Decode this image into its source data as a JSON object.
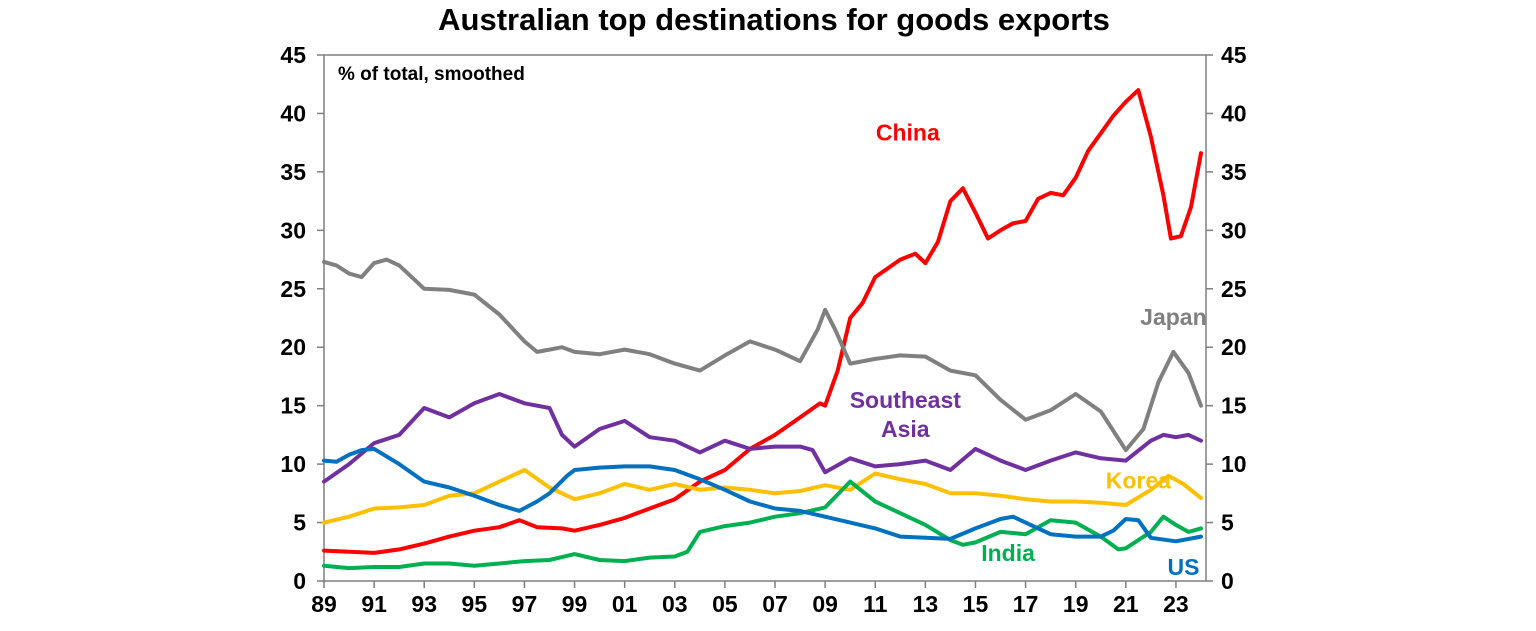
{
  "chart_data": {
    "type": "line",
    "title": "Australian top destinations for goods exports",
    "note": "% of total, smoothed",
    "xlabel": "",
    "ylabel": "",
    "xlim": [
      1989,
      2024.2
    ],
    "ylim": [
      0,
      45
    ],
    "y_ticks": [
      0,
      5,
      10,
      15,
      20,
      25,
      30,
      35,
      40,
      45
    ],
    "x_ticks": [
      {
        "value": 1989,
        "label": "89"
      },
      {
        "value": 1991,
        "label": "91"
      },
      {
        "value": 1993,
        "label": "93"
      },
      {
        "value": 1995,
        "label": "95"
      },
      {
        "value": 1997,
        "label": "97"
      },
      {
        "value": 1999,
        "label": "99"
      },
      {
        "value": 2001,
        "label": "01"
      },
      {
        "value": 2003,
        "label": "03"
      },
      {
        "value": 2005,
        "label": "05"
      },
      {
        "value": 2007,
        "label": "07"
      },
      {
        "value": 2009,
        "label": "09"
      },
      {
        "value": 2011,
        "label": "11"
      },
      {
        "value": 2013,
        "label": "13"
      },
      {
        "value": 2015,
        "label": "15"
      },
      {
        "value": 2017,
        "label": "17"
      },
      {
        "value": 2019,
        "label": "19"
      },
      {
        "value": 2021,
        "label": "21"
      },
      {
        "value": 2023,
        "label": "23"
      }
    ],
    "grid": false,
    "legend": "inline labels",
    "series": [
      {
        "key": "china",
        "name": "China",
        "color": "#ff0000",
        "label_lines": [
          "China"
        ],
        "label_anchor": {
          "x": 2012.3,
          "y": 37.7
        },
        "points": [
          [
            1989.0,
            2.6
          ],
          [
            1990.0,
            2.5
          ],
          [
            1991.0,
            2.4
          ],
          [
            1992.0,
            2.7
          ],
          [
            1993.0,
            3.2
          ],
          [
            1994.0,
            3.8
          ],
          [
            1995.0,
            4.3
          ],
          [
            1996.0,
            4.6
          ],
          [
            1996.8,
            5.2
          ],
          [
            1997.5,
            4.6
          ],
          [
            1998.5,
            4.5
          ],
          [
            1999.0,
            4.3
          ],
          [
            2000.0,
            4.8
          ],
          [
            2001.0,
            5.4
          ],
          [
            2002.0,
            6.2
          ],
          [
            2003.0,
            7.0
          ],
          [
            2004.0,
            8.5
          ],
          [
            2005.0,
            9.5
          ],
          [
            2006.0,
            11.3
          ],
          [
            2007.0,
            12.5
          ],
          [
            2008.0,
            14.0
          ],
          [
            2008.8,
            15.2
          ],
          [
            2009.0,
            15.0
          ],
          [
            2009.5,
            18.0
          ],
          [
            2010.0,
            22.5
          ],
          [
            2010.5,
            23.8
          ],
          [
            2011.0,
            26.0
          ],
          [
            2012.0,
            27.5
          ],
          [
            2012.6,
            28.0
          ],
          [
            2013.0,
            27.2
          ],
          [
            2013.5,
            29.0
          ],
          [
            2014.0,
            32.5
          ],
          [
            2014.5,
            33.6
          ],
          [
            2015.0,
            31.5
          ],
          [
            2015.5,
            29.3
          ],
          [
            2016.0,
            30.0
          ],
          [
            2016.5,
            30.6
          ],
          [
            2017.0,
            30.8
          ],
          [
            2017.5,
            32.7
          ],
          [
            2018.0,
            33.2
          ],
          [
            2018.5,
            33.0
          ],
          [
            2019.0,
            34.5
          ],
          [
            2019.5,
            36.8
          ],
          [
            2020.0,
            38.3
          ],
          [
            2020.5,
            39.8
          ],
          [
            2021.0,
            41.0
          ],
          [
            2021.5,
            42.0
          ],
          [
            2022.0,
            38.0
          ],
          [
            2022.5,
            33.0
          ],
          [
            2022.8,
            29.3
          ],
          [
            2023.2,
            29.5
          ],
          [
            2023.6,
            32.0
          ],
          [
            2024.0,
            36.6
          ]
        ]
      },
      {
        "key": "japan",
        "name": "Japan",
        "color": "#808080",
        "label_lines": [
          "Japan"
        ],
        "label_anchor": {
          "x": 2022.9,
          "y": 21.9
        },
        "points": [
          [
            1989.0,
            27.3
          ],
          [
            1989.5,
            27.0
          ],
          [
            1990.0,
            26.3
          ],
          [
            1990.5,
            26.0
          ],
          [
            1991.0,
            27.2
          ],
          [
            1991.5,
            27.5
          ],
          [
            1992.0,
            27.0
          ],
          [
            1992.5,
            26.0
          ],
          [
            1993.0,
            25.0
          ],
          [
            1994.0,
            24.9
          ],
          [
            1995.0,
            24.5
          ],
          [
            1996.0,
            22.8
          ],
          [
            1997.0,
            20.5
          ],
          [
            1997.5,
            19.6
          ],
          [
            1998.0,
            19.8
          ],
          [
            1998.5,
            20.0
          ],
          [
            1999.0,
            19.6
          ],
          [
            2000.0,
            19.4
          ],
          [
            2001.0,
            19.8
          ],
          [
            2002.0,
            19.4
          ],
          [
            2003.0,
            18.6
          ],
          [
            2004.0,
            18.0
          ],
          [
            2005.0,
            19.3
          ],
          [
            2006.0,
            20.5
          ],
          [
            2007.0,
            19.8
          ],
          [
            2008.0,
            18.8
          ],
          [
            2008.7,
            21.5
          ],
          [
            2009.0,
            23.2
          ],
          [
            2009.4,
            21.5
          ],
          [
            2010.0,
            18.6
          ],
          [
            2011.0,
            19.0
          ],
          [
            2012.0,
            19.3
          ],
          [
            2013.0,
            19.2
          ],
          [
            2014.0,
            18.0
          ],
          [
            2015.0,
            17.6
          ],
          [
            2016.0,
            15.5
          ],
          [
            2017.0,
            13.8
          ],
          [
            2018.0,
            14.6
          ],
          [
            2019.0,
            16.0
          ],
          [
            2020.0,
            14.5
          ],
          [
            2021.0,
            11.2
          ],
          [
            2021.7,
            13.0
          ],
          [
            2022.3,
            17.0
          ],
          [
            2022.9,
            19.6
          ],
          [
            2023.5,
            17.8
          ],
          [
            2024.0,
            15.0
          ]
        ]
      },
      {
        "key": "southeast_asia",
        "name": "Southeast Asia",
        "color": "#7030a0",
        "label_lines": [
          "Southeast",
          "Asia"
        ],
        "label_anchor": {
          "x": 2012.2,
          "y": 14.8
        },
        "points": [
          [
            1989.0,
            8.5
          ],
          [
            1990.0,
            10.0
          ],
          [
            1991.0,
            11.8
          ],
          [
            1992.0,
            12.5
          ],
          [
            1993.0,
            14.8
          ],
          [
            1994.0,
            14.0
          ],
          [
            1995.0,
            15.2
          ],
          [
            1996.0,
            16.0
          ],
          [
            1997.0,
            15.2
          ],
          [
            1998.0,
            14.8
          ],
          [
            1998.5,
            12.5
          ],
          [
            1999.0,
            11.5
          ],
          [
            2000.0,
            13.0
          ],
          [
            2001.0,
            13.7
          ],
          [
            2002.0,
            12.3
          ],
          [
            2003.0,
            12.0
          ],
          [
            2004.0,
            11.0
          ],
          [
            2005.0,
            12.0
          ],
          [
            2006.0,
            11.3
          ],
          [
            2007.0,
            11.5
          ],
          [
            2008.0,
            11.5
          ],
          [
            2008.5,
            11.2
          ],
          [
            2009.0,
            9.3
          ],
          [
            2010.0,
            10.5
          ],
          [
            2011.0,
            9.8
          ],
          [
            2012.0,
            10.0
          ],
          [
            2013.0,
            10.3
          ],
          [
            2014.0,
            9.5
          ],
          [
            2015.0,
            11.3
          ],
          [
            2016.0,
            10.3
          ],
          [
            2017.0,
            9.5
          ],
          [
            2018.0,
            10.3
          ],
          [
            2019.0,
            11.0
          ],
          [
            2020.0,
            10.5
          ],
          [
            2021.0,
            10.3
          ],
          [
            2022.0,
            12.0
          ],
          [
            2022.5,
            12.5
          ],
          [
            2023.0,
            12.3
          ],
          [
            2023.5,
            12.5
          ],
          [
            2024.0,
            12.0
          ]
        ]
      },
      {
        "key": "korea",
        "name": "Korea",
        "color": "#ffc000",
        "label_lines": [
          "Korea"
        ],
        "label_anchor": {
          "x": 2021.5,
          "y": 7.9
        },
        "points": [
          [
            1989.0,
            5.0
          ],
          [
            1990.0,
            5.5
          ],
          [
            1991.0,
            6.2
          ],
          [
            1992.0,
            6.3
          ],
          [
            1993.0,
            6.5
          ],
          [
            1994.0,
            7.3
          ],
          [
            1995.0,
            7.5
          ],
          [
            1996.0,
            8.5
          ],
          [
            1997.0,
            9.5
          ],
          [
            1998.0,
            8.0
          ],
          [
            1999.0,
            7.0
          ],
          [
            2000.0,
            7.5
          ],
          [
            2001.0,
            8.3
          ],
          [
            2002.0,
            7.8
          ],
          [
            2003.0,
            8.3
          ],
          [
            2004.0,
            7.8
          ],
          [
            2005.0,
            8.0
          ],
          [
            2006.0,
            7.8
          ],
          [
            2007.0,
            7.5
          ],
          [
            2008.0,
            7.7
          ],
          [
            2009.0,
            8.2
          ],
          [
            2010.0,
            7.8
          ],
          [
            2011.0,
            9.2
          ],
          [
            2012.0,
            8.7
          ],
          [
            2013.0,
            8.3
          ],
          [
            2014.0,
            7.5
          ],
          [
            2015.0,
            7.5
          ],
          [
            2016.0,
            7.3
          ],
          [
            2017.0,
            7.0
          ],
          [
            2018.0,
            6.8
          ],
          [
            2019.0,
            6.8
          ],
          [
            2020.0,
            6.7
          ],
          [
            2021.0,
            6.5
          ],
          [
            2022.0,
            7.8
          ],
          [
            2022.7,
            9.0
          ],
          [
            2023.3,
            8.3
          ],
          [
            2024.0,
            7.1
          ]
        ]
      },
      {
        "key": "india",
        "name": "India",
        "color": "#00b050",
        "label_lines": [
          "India"
        ],
        "label_anchor": {
          "x": 2016.3,
          "y": 1.7
        },
        "points": [
          [
            1989.0,
            1.3
          ],
          [
            1990.0,
            1.1
          ],
          [
            1991.0,
            1.2
          ],
          [
            1992.0,
            1.2
          ],
          [
            1993.0,
            1.5
          ],
          [
            1994.0,
            1.5
          ],
          [
            1995.0,
            1.3
          ],
          [
            1996.0,
            1.5
          ],
          [
            1997.0,
            1.7
          ],
          [
            1998.0,
            1.8
          ],
          [
            1999.0,
            2.3
          ],
          [
            2000.0,
            1.8
          ],
          [
            2001.0,
            1.7
          ],
          [
            2002.0,
            2.0
          ],
          [
            2003.0,
            2.1
          ],
          [
            2003.5,
            2.5
          ],
          [
            2004.0,
            4.2
          ],
          [
            2005.0,
            4.7
          ],
          [
            2006.0,
            5.0
          ],
          [
            2007.0,
            5.5
          ],
          [
            2008.0,
            5.8
          ],
          [
            2009.0,
            6.3
          ],
          [
            2010.0,
            8.5
          ],
          [
            2011.0,
            6.8
          ],
          [
            2012.0,
            5.8
          ],
          [
            2013.0,
            4.8
          ],
          [
            2014.0,
            3.5
          ],
          [
            2014.5,
            3.1
          ],
          [
            2015.0,
            3.3
          ],
          [
            2016.0,
            4.2
          ],
          [
            2017.0,
            4.0
          ],
          [
            2018.0,
            5.2
          ],
          [
            2019.0,
            5.0
          ],
          [
            2020.0,
            3.8
          ],
          [
            2020.7,
            2.7
          ],
          [
            2021.0,
            2.8
          ],
          [
            2022.0,
            4.2
          ],
          [
            2022.5,
            5.5
          ],
          [
            2023.0,
            4.8
          ],
          [
            2023.5,
            4.2
          ],
          [
            2024.0,
            4.5
          ]
        ]
      },
      {
        "key": "us",
        "name": "US",
        "color": "#0070c0",
        "label_lines": [
          "US"
        ],
        "label_anchor": {
          "x": 2023.3,
          "y": 0.5
        },
        "points": [
          [
            1989.0,
            10.3
          ],
          [
            1989.5,
            10.2
          ],
          [
            1990.0,
            10.8
          ],
          [
            1990.5,
            11.2
          ],
          [
            1991.0,
            11.3
          ],
          [
            1992.0,
            10.0
          ],
          [
            1993.0,
            8.5
          ],
          [
            1994.0,
            8.0
          ],
          [
            1995.0,
            7.3
          ],
          [
            1996.0,
            6.5
          ],
          [
            1996.8,
            6.0
          ],
          [
            1997.5,
            6.8
          ],
          [
            1998.0,
            7.5
          ],
          [
            1998.7,
            9.0
          ],
          [
            1999.0,
            9.5
          ],
          [
            2000.0,
            9.7
          ],
          [
            2001.0,
            9.8
          ],
          [
            2002.0,
            9.8
          ],
          [
            2003.0,
            9.5
          ],
          [
            2004.0,
            8.7
          ],
          [
            2005.0,
            7.8
          ],
          [
            2006.0,
            6.8
          ],
          [
            2007.0,
            6.2
          ],
          [
            2008.0,
            6.0
          ],
          [
            2009.0,
            5.5
          ],
          [
            2010.0,
            5.0
          ],
          [
            2011.0,
            4.5
          ],
          [
            2012.0,
            3.8
          ],
          [
            2013.0,
            3.7
          ],
          [
            2014.0,
            3.6
          ],
          [
            2015.0,
            4.5
          ],
          [
            2016.0,
            5.3
          ],
          [
            2016.5,
            5.5
          ],
          [
            2017.0,
            5.0
          ],
          [
            2018.0,
            4.0
          ],
          [
            2019.0,
            3.8
          ],
          [
            2020.0,
            3.8
          ],
          [
            2020.5,
            4.3
          ],
          [
            2021.0,
            5.3
          ],
          [
            2021.5,
            5.2
          ],
          [
            2022.0,
            3.7
          ],
          [
            2023.0,
            3.4
          ],
          [
            2024.0,
            3.8
          ]
        ]
      }
    ]
  }
}
